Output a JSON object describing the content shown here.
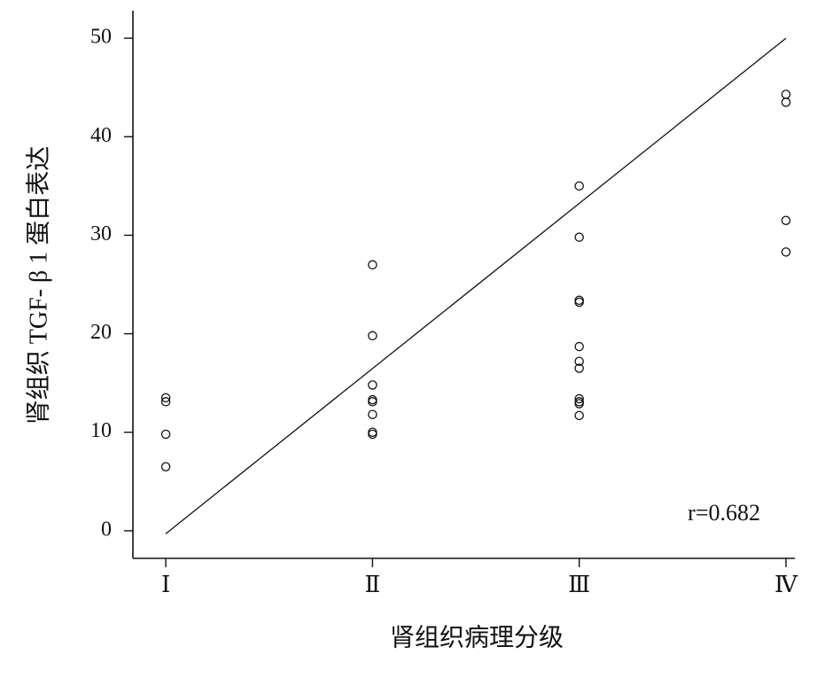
{
  "chart_data": {
    "type": "scatter",
    "x_label": "肾组织病理分级",
    "y_label": "肾组织 TGF- β 1 蛋白表达",
    "annotation": "r=0.682",
    "xlim": [
      0.841,
      4.043
    ],
    "xticks": [
      {
        "value": 1,
        "label": "Ⅰ"
      },
      {
        "value": 2,
        "label": "Ⅱ"
      },
      {
        "value": 3,
        "label": "Ⅲ"
      },
      {
        "value": 4,
        "label": "Ⅳ"
      }
    ],
    "ylim": [
      -2.8,
      52.8
    ],
    "yticks": [
      0,
      10,
      20,
      30,
      40,
      50
    ],
    "color": "#111111",
    "series": [
      {
        "name": null,
        "x": [
          1,
          1,
          1,
          1,
          2,
          2,
          2,
          2,
          2,
          2,
          2,
          2,
          3,
          3,
          3,
          3,
          3,
          3,
          3,
          3,
          3,
          3,
          3,
          4,
          4,
          4,
          4
        ],
        "values": [
          13.5,
          13.1,
          9.8,
          6.5,
          27,
          19.8,
          14.8,
          13.3,
          13.1,
          11.8,
          10.0,
          9.8,
          35,
          29.8,
          23.4,
          23.2,
          18.7,
          17.2,
          16.5,
          13.4,
          13.1,
          12.9,
          11.7,
          44.3,
          43.5,
          31.5,
          28.3
        ]
      }
    ],
    "trend_line": {
      "x": [
        1,
        4
      ],
      "values": [
        -0.3,
        50
      ]
    }
  }
}
